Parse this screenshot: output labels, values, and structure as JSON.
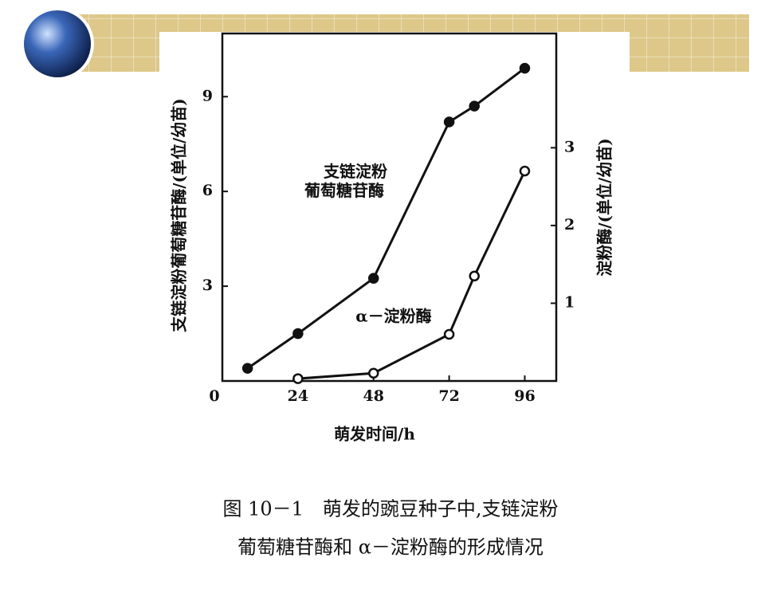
{
  "chart_data": {
    "type": "line",
    "caption": [
      "图 10－1　萌发的豌豆种子中,支链淀粉",
      "葡萄糖苷酶和 α－淀粉酶的形成情况"
    ],
    "x_label": "萌发时间/h",
    "y_label": "支链淀粉葡萄糖苷酶/(单位/幼苗)",
    "y2_label": "淀粉酶/(单位/幼苗)",
    "xlim": [
      0,
      106
    ],
    "xticks": [
      0,
      24,
      48,
      72,
      96
    ],
    "ylim": [
      0,
      11
    ],
    "yticks": [
      3,
      6,
      9
    ],
    "y2lim": [
      0,
      4.47
    ],
    "y2ticks": [
      1,
      2,
      3
    ],
    "series": [
      {
        "name": "支链淀粉葡萄糖苷酶",
        "color": "#111111",
        "marker": "filled",
        "x": [
          8,
          24,
          48,
          72,
          80,
          96
        ],
        "values": [
          0.4,
          1.5,
          3.25,
          8.2,
          8.7,
          9.9
        ]
      },
      {
        "name": "α－淀粉酶",
        "color": "#111111",
        "marker": "open",
        "axis": "y2",
        "x": [
          24,
          48,
          72,
          80,
          96
        ],
        "values": [
          0.03,
          0.1,
          0.6,
          1.35,
          2.7
        ]
      }
    ]
  }
}
